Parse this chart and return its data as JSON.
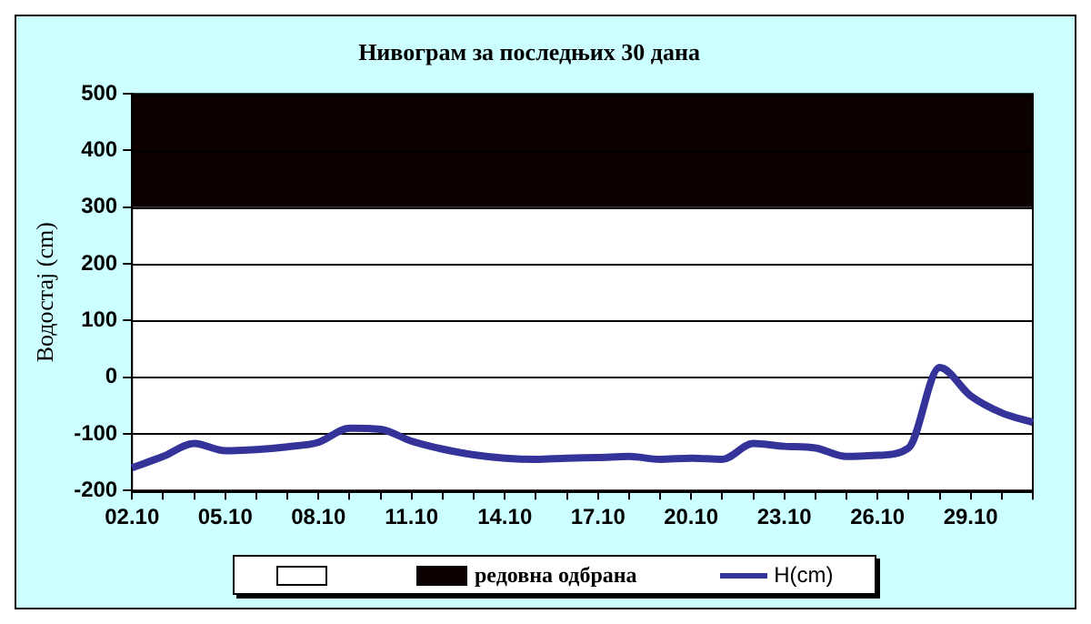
{
  "chart_data": {
    "type": "line",
    "title": "Нивограм за последњих 30 дана",
    "ylabel": "Водостај (cm)",
    "categories": [
      "02.10",
      null,
      null,
      "05.10",
      null,
      null,
      "08.10",
      null,
      null,
      "11.10",
      null,
      null,
      "14.10",
      null,
      null,
      "17.10",
      null,
      null,
      "20.10",
      null,
      null,
      "23.10",
      null,
      null,
      "26.10",
      null,
      null,
      "29.10",
      null,
      null
    ],
    "series": [
      {
        "name": "H(cm)",
        "color": "#333399",
        "values": [
          -160,
          -140,
          -117,
          -130,
          -128,
          -123,
          -115,
          -90,
          -92,
          -113,
          -127,
          -137,
          -143,
          -145,
          -143,
          -142,
          -140,
          -145,
          -143,
          -145,
          -117,
          -122,
          -125,
          -140,
          -138,
          -125,
          17,
          -33,
          -63,
          -80
        ]
      }
    ],
    "bands": [
      {
        "axis": "y",
        "from": -200,
        "to": 300,
        "color": "#ffffff"
      },
      {
        "axis": "y",
        "from": 300,
        "to": 500,
        "label": "редовна одбрана",
        "color": "#0d0000"
      }
    ],
    "ylim": [
      -200,
      500
    ],
    "yticks": [
      -200,
      -100,
      0,
      100,
      200,
      300,
      400,
      500
    ],
    "grid": "y",
    "legend": "bottom",
    "marker": "none",
    "line_style": "solid"
  }
}
